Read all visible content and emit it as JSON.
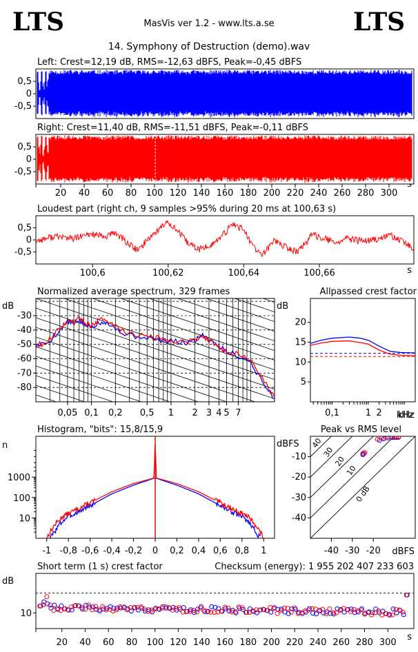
{
  "header": {
    "logo_left": "LTS",
    "logo_right": "LTS",
    "app_title": "MasVis ver 1.2 - www.lts.a.se",
    "file_title": "14. Symphony of Destruction (demo).wav"
  },
  "colors": {
    "left": "#0000ff",
    "right": "#ff0000"
  },
  "chart_data": [
    {
      "type": "area",
      "title": "Left: Crest=12,19 dB, RMS=-12,63 dBFS, Peak=-0,45 dBFS",
      "series": [
        {
          "name": "Left",
          "color": "#0000ff"
        }
      ],
      "ylim": [
        -1,
        1
      ],
      "yticks": [
        "0,5",
        "0",
        "-0,5"
      ],
      "ytick_values": [
        0.5,
        0,
        -0.5
      ],
      "xlim": [
        0,
        320
      ]
    },
    {
      "type": "area",
      "title": "Right: Crest=11,40 dB, RMS=-11,51 dBFS, Peak=-0,11 dBFS",
      "series": [
        {
          "name": "Right",
          "color": "#ff0000"
        }
      ],
      "ylim": [
        -1,
        1
      ],
      "yticks": [
        "0,5",
        "0",
        "-0,5"
      ],
      "ytick_values": [
        0.5,
        0,
        -0.5
      ],
      "xlim": [
        0,
        320
      ],
      "marker_x": 100.63,
      "xticks": [
        "20",
        "40",
        "60",
        "80",
        "100",
        "120",
        "140",
        "160",
        "180",
        "200",
        "220",
        "240",
        "260",
        "280",
        "300"
      ],
      "xtick_values": [
        20,
        40,
        60,
        80,
        100,
        120,
        140,
        160,
        180,
        200,
        220,
        240,
        260,
        280,
        300
      ],
      "xunit": "s"
    },
    {
      "type": "line",
      "title": "Loudest part (right ch, 9 samples >95% during 20 ms at 100,63 s)",
      "ylim": [
        -1,
        1
      ],
      "yticks": [
        "0,5",
        "0",
        "-0,5"
      ],
      "ytick_values": [
        0.5,
        0,
        -0.5
      ],
      "xlim": [
        100.585,
        100.685
      ],
      "xticks": [
        "100,6",
        "100,62",
        "100,64",
        "100,66"
      ],
      "xtick_values": [
        100.6,
        100.62,
        100.64,
        100.66
      ],
      "xunit": "s",
      "anchors": [
        [
          100.585,
          -0.05
        ],
        [
          100.59,
          0.15
        ],
        [
          100.595,
          0.05
        ],
        [
          100.6,
          0.25
        ],
        [
          100.603,
          0.1
        ],
        [
          100.606,
          0.3
        ],
        [
          100.609,
          -0.1
        ],
        [
          100.612,
          -0.45
        ],
        [
          100.615,
          0.1
        ],
        [
          100.618,
          0.5
        ],
        [
          100.62,
          0.75
        ],
        [
          100.622,
          0.45
        ],
        [
          100.625,
          -0.1
        ],
        [
          100.628,
          -0.4
        ],
        [
          100.631,
          -0.25
        ],
        [
          100.634,
          0.1
        ],
        [
          100.637,
          0.65
        ],
        [
          100.64,
          0.45
        ],
        [
          100.642,
          -0.2
        ],
        [
          100.645,
          -0.65
        ],
        [
          100.648,
          0.0
        ],
        [
          100.651,
          -0.3
        ],
        [
          100.654,
          -0.5
        ],
        [
          100.656,
          -0.2
        ],
        [
          100.658,
          0.2
        ],
        [
          100.661,
          0.1
        ],
        [
          100.664,
          -0.15
        ],
        [
          100.667,
          0.05
        ],
        [
          100.671,
          -0.05
        ],
        [
          100.675,
          0.0
        ],
        [
          100.679,
          0.2
        ],
        [
          100.682,
          -0.1
        ],
        [
          100.685,
          -0.35
        ]
      ]
    },
    {
      "type": "line",
      "title": "Normalized average spectrum, 329 frames",
      "ylabel": "dB",
      "xlabel": "kHz",
      "log_x": true,
      "xlim": [
        0.02,
        20
      ],
      "ylim": [
        -90,
        -18
      ],
      "yticks": [
        "-30",
        "-40",
        "-50",
        "-60",
        "-70",
        "-80"
      ],
      "ytick_values": [
        -30,
        -40,
        -50,
        -60,
        -70,
        -80
      ],
      "xticks": [
        "0,05",
        "0,1",
        "0,2",
        "0,5",
        "1",
        "2",
        "3",
        "4",
        "5",
        "7"
      ],
      "xtick_values": [
        0.05,
        0.1,
        0.2,
        0.5,
        1,
        2,
        3,
        4,
        5,
        7
      ],
      "series": [
        {
          "name": "Left",
          "color": "#0000ff",
          "points": [
            [
              0.02,
              -51
            ],
            [
              0.028,
              -49
            ],
            [
              0.04,
              -40
            ],
            [
              0.05,
              -34
            ],
            [
              0.06,
              -36
            ],
            [
              0.07,
              -33
            ],
            [
              0.08,
              -36
            ],
            [
              0.1,
              -38
            ],
            [
              0.12,
              -35
            ],
            [
              0.15,
              -34
            ],
            [
              0.2,
              -39
            ],
            [
              0.3,
              -44
            ],
            [
              0.5,
              -45
            ],
            [
              0.7,
              -47
            ],
            [
              1,
              -48
            ],
            [
              1.5,
              -49
            ],
            [
              2,
              -47
            ],
            [
              2.5,
              -43
            ],
            [
              3,
              -46
            ],
            [
              4,
              -51
            ],
            [
              5,
              -55
            ],
            [
              7,
              -58
            ],
            [
              10,
              -62
            ],
            [
              14,
              -76
            ],
            [
              20,
              -88
            ]
          ]
        },
        {
          "name": "Right",
          "color": "#ff0000",
          "points": [
            [
              0.02,
              -51
            ],
            [
              0.028,
              -48
            ],
            [
              0.04,
              -39
            ],
            [
              0.05,
              -33
            ],
            [
              0.06,
              -35
            ],
            [
              0.07,
              -31
            ],
            [
              0.08,
              -35
            ],
            [
              0.1,
              -37
            ],
            [
              0.12,
              -34
            ],
            [
              0.15,
              -32
            ],
            [
              0.2,
              -38
            ],
            [
              0.3,
              -43
            ],
            [
              0.5,
              -44
            ],
            [
              0.7,
              -46
            ],
            [
              1,
              -47
            ],
            [
              1.5,
              -48
            ],
            [
              2,
              -47
            ],
            [
              2.5,
              -44
            ],
            [
              3,
              -47
            ],
            [
              4,
              -52
            ],
            [
              5,
              -55
            ],
            [
              7,
              -57
            ],
            [
              10,
              -61
            ],
            [
              14,
              -73
            ],
            [
              20,
              -87
            ]
          ]
        }
      ]
    },
    {
      "type": "line",
      "title": "Allpassed crest factor",
      "ylabel": "dB",
      "xlabel": "kHz",
      "log_x": true,
      "xlim": [
        0.025,
        20
      ],
      "ylim": [
        0,
        26
      ],
      "yticks": [
        "20",
        "15",
        "10",
        "5"
      ],
      "ytick_values": [
        20,
        15,
        10,
        5
      ],
      "xticks": [
        "0,1",
        "1",
        "2"
      ],
      "xtick_values": [
        0.1,
        1,
        2
      ],
      "series": [
        {
          "name": "Left",
          "color": "#0000ff",
          "points": [
            [
              0.025,
              14.7
            ],
            [
              0.05,
              15.5
            ],
            [
              0.1,
              16
            ],
            [
              0.3,
              16.3
            ],
            [
              0.6,
              16
            ],
            [
              1,
              15.5
            ],
            [
              2,
              14
            ],
            [
              4,
              12.7
            ],
            [
              8,
              12.4
            ],
            [
              20,
              12.3
            ]
          ],
          "reference": 12.2
        },
        {
          "name": "Right",
          "color": "#ff0000",
          "points": [
            [
              0.025,
              14.2
            ],
            [
              0.05,
              14.8
            ],
            [
              0.1,
              15.2
            ],
            [
              0.3,
              15.3
            ],
            [
              0.6,
              14.9
            ],
            [
              1,
              14.5
            ],
            [
              2,
              13
            ],
            [
              4,
              12
            ],
            [
              8,
              11.7
            ],
            [
              20,
              11.6
            ]
          ],
          "reference": 11.4
        }
      ]
    },
    {
      "type": "line",
      "title": "Histogram, \"bits\": 15,8/15,9",
      "ylabel": "n",
      "log_y": true,
      "xlim": [
        -1.1,
        1.1
      ],
      "ylim": [
        1,
        100000
      ],
      "yticks": [
        "1000",
        "100",
        "10"
      ],
      "ytick_values": [
        1000,
        100,
        10
      ],
      "xticks": [
        "-1",
        "-0,8",
        "-0,6",
        "-0,4",
        "-0,2",
        "0",
        "0,2",
        "0,4",
        "0,6",
        "0,8",
        "1"
      ],
      "xtick_values": [
        -1,
        -0.8,
        -0.6,
        -0.4,
        -0.2,
        0,
        0.2,
        0.4,
        0.6,
        0.8,
        1
      ],
      "series": [
        {
          "name": "Left",
          "color": "#0000ff",
          "points": [
            [
              -0.97,
              1
            ],
            [
              -0.93,
              2
            ],
            [
              -0.88,
              5
            ],
            [
              -0.82,
              10
            ],
            [
              -0.6,
              40
            ],
            [
              -0.4,
              150
            ],
            [
              -0.2,
              400
            ],
            [
              -0.01,
              880
            ],
            [
              0.01,
              880
            ],
            [
              0.2,
              400
            ],
            [
              0.4,
              150
            ],
            [
              0.6,
              40
            ],
            [
              0.82,
              10
            ],
            [
              0.88,
              5
            ],
            [
              0.93,
              2
            ],
            [
              0.97,
              1
            ]
          ]
        },
        {
          "name": "Right",
          "color": "#ff0000",
          "points": [
            [
              -1.0,
              1
            ],
            [
              -0.97,
              2
            ],
            [
              -0.92,
              5
            ],
            [
              -0.85,
              12
            ],
            [
              -0.6,
              55
            ],
            [
              -0.4,
              190
            ],
            [
              -0.2,
              480
            ],
            [
              -0.01,
              900
            ],
            [
              0.0,
              90000
            ],
            [
              0.01,
              900
            ],
            [
              0.2,
              480
            ],
            [
              0.4,
              190
            ],
            [
              0.6,
              55
            ],
            [
              0.85,
              12
            ],
            [
              0.92,
              5
            ],
            [
              0.97,
              2
            ],
            [
              1.0,
              1
            ]
          ]
        }
      ]
    },
    {
      "type": "scatter",
      "title": "Peak vs RMS level",
      "xlabel": "dBFS",
      "ylabel": "dBFS",
      "xlim": [
        -50,
        0
      ],
      "ylim": [
        -50,
        0
      ],
      "yticks": [
        "-10",
        "-20",
        "-30",
        "-40"
      ],
      "ytick_values": [
        -10,
        -20,
        -30,
        -40
      ],
      "xticks": [
        "-40",
        "-30",
        "-20"
      ],
      "xtick_values": [
        -40,
        -30,
        -20
      ],
      "diagonal_labels": [
        "40",
        "30",
        "20",
        "10",
        "0 dB"
      ],
      "diagonal_offsets": [
        40,
        30,
        20,
        10,
        0
      ],
      "series": [
        {
          "name": "Left",
          "color": "#0000ff",
          "points": [
            [
              -25,
              -9
            ],
            [
              -24.5,
              -8.5
            ],
            [
              -17,
              -2
            ],
            [
              -15,
              -1.2
            ],
            [
              -13,
              -0.8
            ],
            [
              -11,
              -0.6
            ],
            [
              -10,
              -0.5
            ],
            [
              -9,
              -0.5
            ],
            [
              -8,
              -0.5
            ]
          ]
        },
        {
          "name": "Right",
          "color": "#ff0000",
          "points": [
            [
              -25,
              -8.5
            ],
            [
              -24,
              -8
            ],
            [
              -18,
              -1.5
            ],
            [
              -16,
              -1
            ],
            [
              -14,
              -0.5
            ],
            [
              -12,
              -0.3
            ],
            [
              -10,
              -0.2
            ],
            [
              -9,
              -0.2
            ],
            [
              -8,
              -0.2
            ]
          ]
        }
      ]
    },
    {
      "type": "scatter",
      "title": "Short term (1 s) crest factor",
      "ylabel": "dB",
      "xlim": [
        0,
        320
      ],
      "ylim": [
        6,
        20
      ],
      "yticks": [
        "10"
      ],
      "ytick_values": [
        10
      ],
      "xticks": [
        "20",
        "40",
        "60",
        "80",
        "100",
        "120",
        "140",
        "160",
        "180",
        "200",
        "220",
        "240",
        "260",
        "280",
        "300"
      ],
      "xtick_values": [
        20,
        40,
        60,
        80,
        100,
        120,
        140,
        160,
        180,
        200,
        220,
        240,
        260,
        280,
        300
      ],
      "xunit": "s",
      "reference_line": 15
    }
  ],
  "checksum": "Checksum (energy):  1 955 202 407 233 603"
}
